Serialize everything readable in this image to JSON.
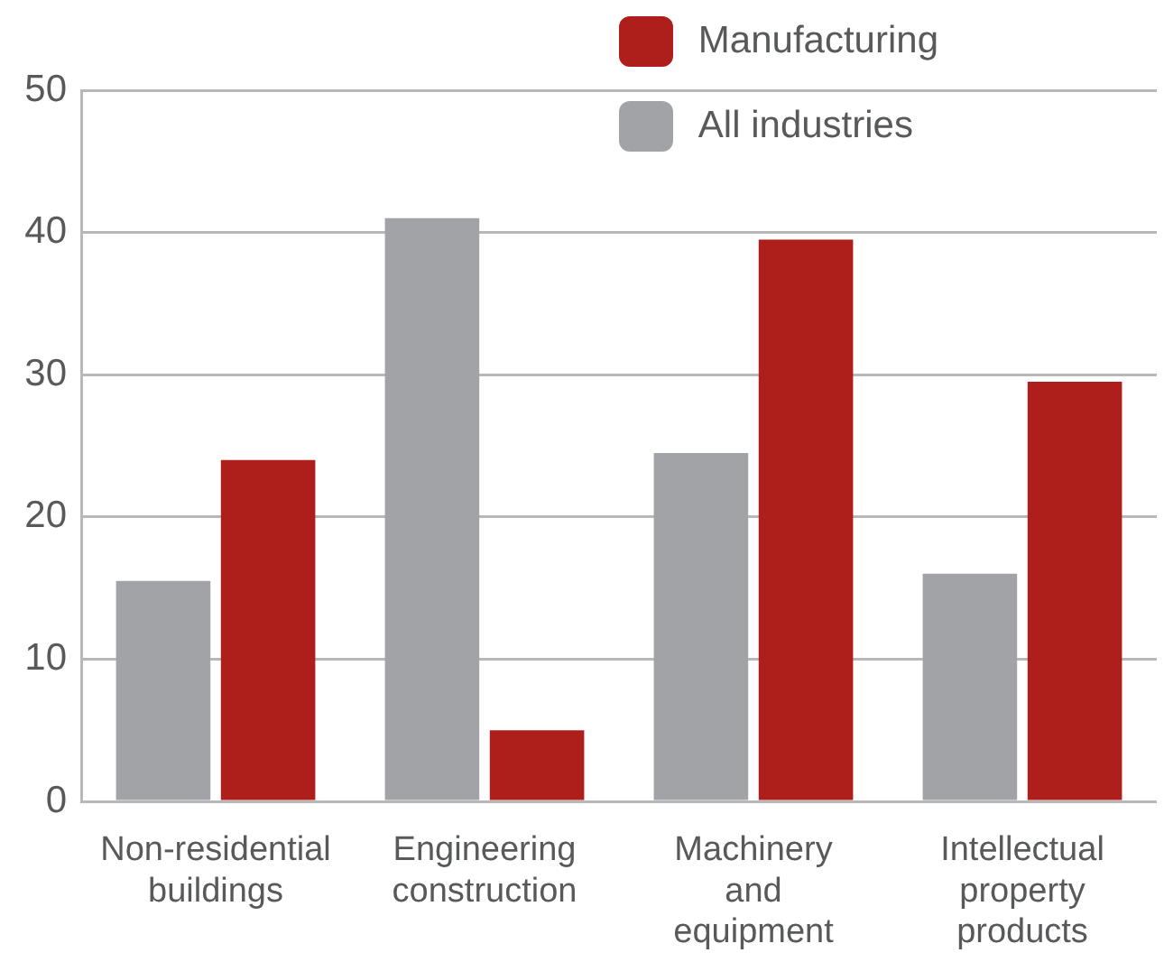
{
  "chart_data": {
    "type": "bar",
    "categories": [
      "Non-residential buildings",
      "Engineering construction",
      "Machinery and equipment",
      "Intellectual property products"
    ],
    "series": [
      {
        "name": "All industries",
        "color": "#a2a3a7",
        "values": [
          15.5,
          41,
          24.5,
          16
        ]
      },
      {
        "name": "Manufacturing",
        "color": "#ae1f1c",
        "values": [
          24,
          5,
          39.5,
          29.5
        ]
      }
    ],
    "ylim": [
      0,
      50
    ],
    "yticks": [
      0,
      10,
      20,
      30,
      40,
      50
    ],
    "grid": "y",
    "legend": "top right"
  }
}
